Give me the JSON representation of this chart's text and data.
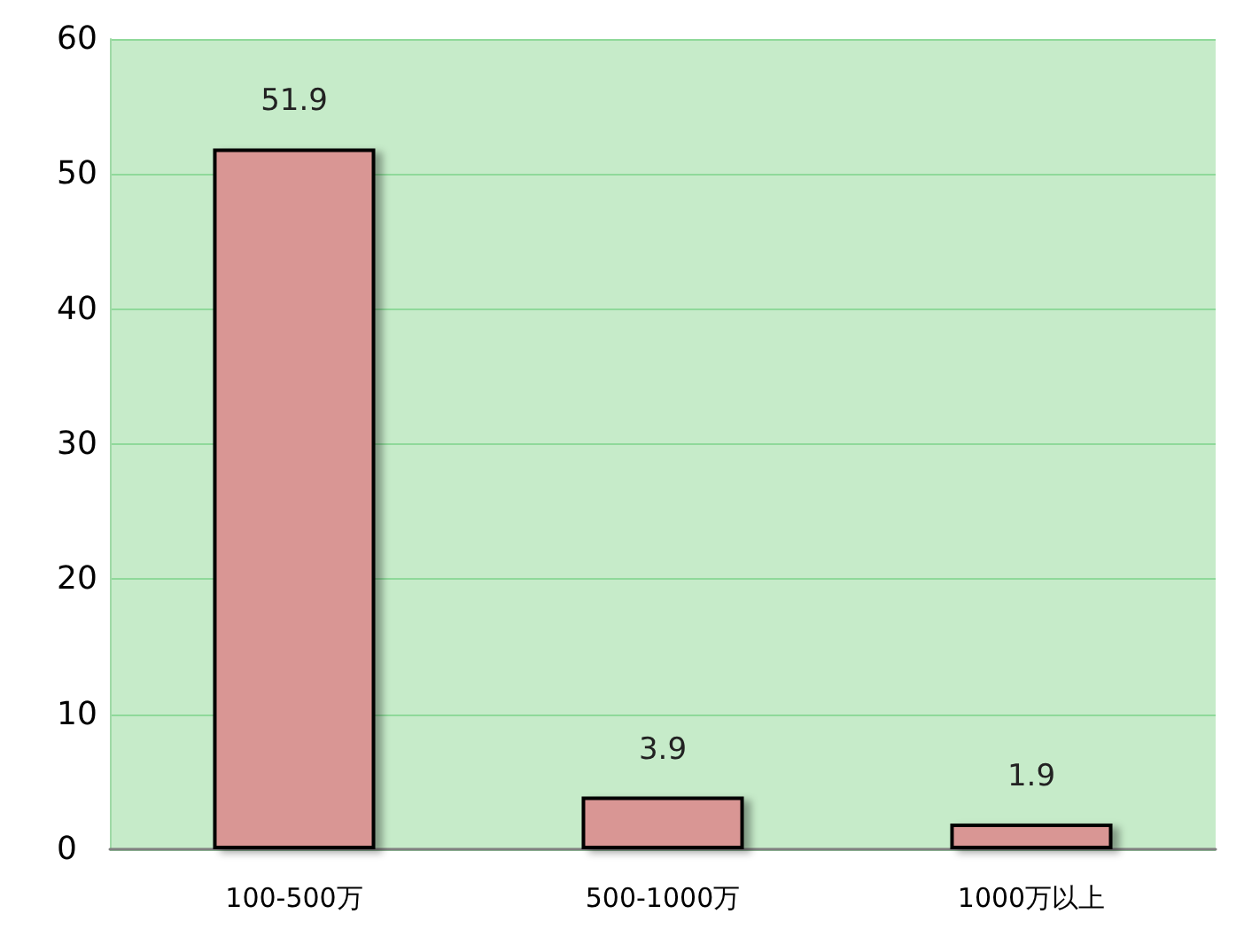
{
  "chart_data": {
    "type": "bar",
    "categories": [
      "100-500万",
      "500-1000万",
      "1000万以上"
    ],
    "values": [
      51.9,
      3.9,
      1.9
    ],
    "color": "#d99694",
    "ylim": [
      0,
      60
    ],
    "yticks": [
      0,
      10,
      20,
      30,
      40,
      50,
      60
    ],
    "grid": "y",
    "data_labels": true
  }
}
